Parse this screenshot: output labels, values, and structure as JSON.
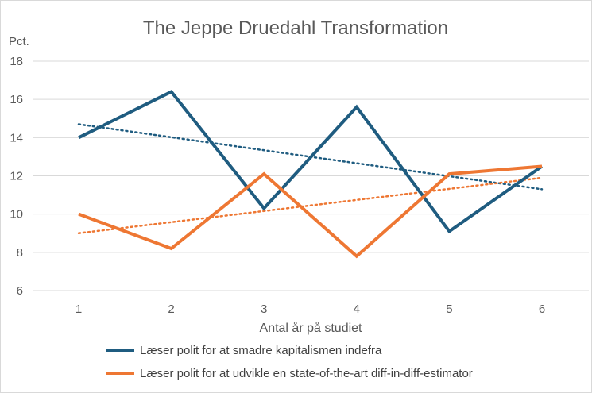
{
  "chart_data": {
    "type": "line",
    "title": "The Jeppe Druedahl Transformation",
    "xlabel": "Antal år på studiet",
    "ylabel": "Pct.",
    "x": [
      1,
      2,
      3,
      4,
      5,
      6
    ],
    "ylim": [
      6,
      18
    ],
    "yticks": [
      6,
      8,
      10,
      12,
      14,
      16,
      18
    ],
    "grid": "horizontal",
    "legend_position": "bottom",
    "series": [
      {
        "name": "Læser polit for at smadre kapitalismen indefra",
        "color": "#1f5c80",
        "values": [
          14.0,
          16.4,
          10.3,
          15.6,
          9.1,
          12.5
        ],
        "trendline": {
          "type": "linear",
          "style": "dotted",
          "values": [
            14.7,
            11.3
          ]
        }
      },
      {
        "name": "Læser polit for at udvikle en state-of-the-art diff-in-diff-estimator",
        "color": "#ee7733",
        "values": [
          10.0,
          8.2,
          12.1,
          7.8,
          12.1,
          12.5
        ],
        "trendline": {
          "type": "linear",
          "style": "dotted",
          "values": [
            9.0,
            11.9
          ]
        }
      }
    ]
  }
}
